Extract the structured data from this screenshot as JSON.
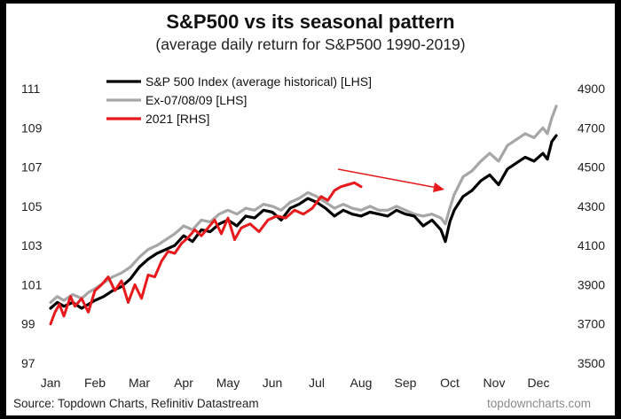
{
  "chart_data": {
    "type": "line",
    "title": "S&P500 vs its seasonal pattern",
    "subtitle": "(average daily return for S&P500 1990-2019)",
    "x_months": [
      "Jan",
      "Feb",
      "Mar",
      "Apr",
      "May",
      "Jun",
      "Jul",
      "Aug",
      "Sep",
      "Oct",
      "Nov",
      "Dec"
    ],
    "y_left": {
      "ticks": [
        97,
        99,
        101,
        103,
        105,
        107,
        109,
        111
      ],
      "range": [
        97,
        111
      ]
    },
    "y_right": {
      "ticks": [
        3500,
        3700,
        3900,
        4100,
        4300,
        4500,
        4700,
        4900
      ],
      "range": [
        3500,
        4900
      ]
    },
    "legend": [
      {
        "label": "S&P 500 Index (average historical) [LHS]",
        "color": "#000000"
      },
      {
        "label": "Ex-07/08/09 [LHS]",
        "color": "#a6a6a6"
      },
      {
        "label": "2021 [RHS]",
        "color": "#e8191c"
      }
    ],
    "series": [
      {
        "name": "S&P 500 Index (average historical) [LHS]",
        "axis": "left",
        "color": "#000000",
        "x": [
          0,
          0.15,
          0.3,
          0.5,
          0.7,
          0.85,
          1.0,
          1.2,
          1.4,
          1.6,
          1.8,
          2.0,
          2.2,
          2.4,
          2.6,
          2.8,
          3.0,
          3.2,
          3.4,
          3.6,
          3.8,
          4.0,
          4.2,
          4.4,
          4.6,
          4.8,
          5.0,
          5.2,
          5.4,
          5.6,
          5.8,
          6.0,
          6.2,
          6.4,
          6.6,
          6.8,
          7.0,
          7.2,
          7.4,
          7.6,
          7.8,
          8.0,
          8.2,
          8.4,
          8.6,
          8.8,
          8.9,
          9.0,
          9.1,
          9.3,
          9.5,
          9.7,
          9.9,
          10.1,
          10.3,
          10.5,
          10.7,
          10.9,
          11.1,
          11.2,
          11.3,
          11.4
        ],
        "values": [
          99.8,
          100.1,
          99.9,
          100.1,
          99.8,
          100.0,
          100.2,
          100.4,
          100.7,
          100.9,
          101.3,
          101.9,
          102.3,
          102.6,
          102.8,
          103.0,
          103.5,
          103.2,
          103.8,
          103.7,
          104.1,
          104.3,
          104.0,
          104.5,
          104.4,
          104.8,
          104.7,
          104.3,
          104.9,
          105.1,
          105.4,
          105.2,
          104.9,
          104.5,
          104.8,
          104.6,
          104.5,
          104.7,
          104.6,
          104.5,
          104.8,
          104.6,
          104.5,
          104.0,
          104.3,
          103.8,
          103.2,
          104.2,
          104.8,
          105.5,
          105.8,
          106.3,
          106.6,
          106.1,
          106.9,
          107.2,
          107.5,
          107.3,
          107.7,
          107.4,
          108.3,
          108.6
        ]
      },
      {
        "name": "Ex-07/08/09 [LHS]",
        "axis": "left",
        "color": "#a6a6a6",
        "x": [
          0,
          0.15,
          0.3,
          0.5,
          0.7,
          0.85,
          1.0,
          1.2,
          1.4,
          1.6,
          1.8,
          2.0,
          2.2,
          2.4,
          2.6,
          2.8,
          3.0,
          3.2,
          3.4,
          3.6,
          3.8,
          4.0,
          4.2,
          4.4,
          4.6,
          4.8,
          5.0,
          5.2,
          5.4,
          5.6,
          5.8,
          6.0,
          6.2,
          6.4,
          6.6,
          6.8,
          7.0,
          7.2,
          7.4,
          7.6,
          7.8,
          8.0,
          8.2,
          8.4,
          8.6,
          8.8,
          8.9,
          9.0,
          9.1,
          9.3,
          9.5,
          9.7,
          9.9,
          10.1,
          10.3,
          10.5,
          10.7,
          10.9,
          11.1,
          11.2,
          11.3,
          11.4
        ],
        "values": [
          100.1,
          100.4,
          100.2,
          100.5,
          100.3,
          100.6,
          100.8,
          101.1,
          101.4,
          101.6,
          101.9,
          102.4,
          102.8,
          103.0,
          103.3,
          103.6,
          104.0,
          103.8,
          104.3,
          104.2,
          104.6,
          104.8,
          104.6,
          104.9,
          104.8,
          105.1,
          105.0,
          104.8,
          105.2,
          105.4,
          105.7,
          105.5,
          105.2,
          104.9,
          105.1,
          104.9,
          104.8,
          105.0,
          104.8,
          104.8,
          105.0,
          104.8,
          104.6,
          104.5,
          104.6,
          104.4,
          104.1,
          104.9,
          105.6,
          106.5,
          106.8,
          107.3,
          107.7,
          107.3,
          108.1,
          108.4,
          108.7,
          108.5,
          109.0,
          108.7,
          109.5,
          110.1
        ]
      },
      {
        "name": "2021 [RHS]",
        "axis": "right",
        "color": "#e8191c",
        "x": [
          0,
          0.1,
          0.2,
          0.3,
          0.45,
          0.55,
          0.7,
          0.85,
          1.0,
          1.15,
          1.3,
          1.45,
          1.6,
          1.75,
          1.9,
          2.05,
          2.2,
          2.35,
          2.5,
          2.65,
          2.8,
          2.95,
          3.1,
          3.25,
          3.4,
          3.55,
          3.7,
          3.85,
          4.0,
          4.15,
          4.3,
          4.5,
          4.7,
          4.9,
          5.1,
          5.3,
          5.5,
          5.7,
          5.9,
          6.1,
          6.25,
          6.4,
          6.55,
          6.7,
          6.85,
          7.0
        ],
        "values": [
          3700,
          3760,
          3800,
          3740,
          3840,
          3790,
          3830,
          3760,
          3870,
          3900,
          3940,
          3870,
          3920,
          3810,
          3900,
          3830,
          3950,
          3940,
          4020,
          4070,
          4060,
          4110,
          4140,
          4180,
          4150,
          4190,
          4230,
          4160,
          4240,
          4130,
          4190,
          4210,
          4170,
          4230,
          4250,
          4240,
          4280,
          4260,
          4290,
          4350,
          4330,
          4380,
          4400,
          4410,
          4420,
          4400
        ]
      }
    ],
    "annotation": "red arrow pointing toward the rising autumn portion of the seasonal pattern"
  },
  "source": "Source: Topdown Charts, Refinitiv Datastream",
  "watermark": "topdowncharts.com"
}
